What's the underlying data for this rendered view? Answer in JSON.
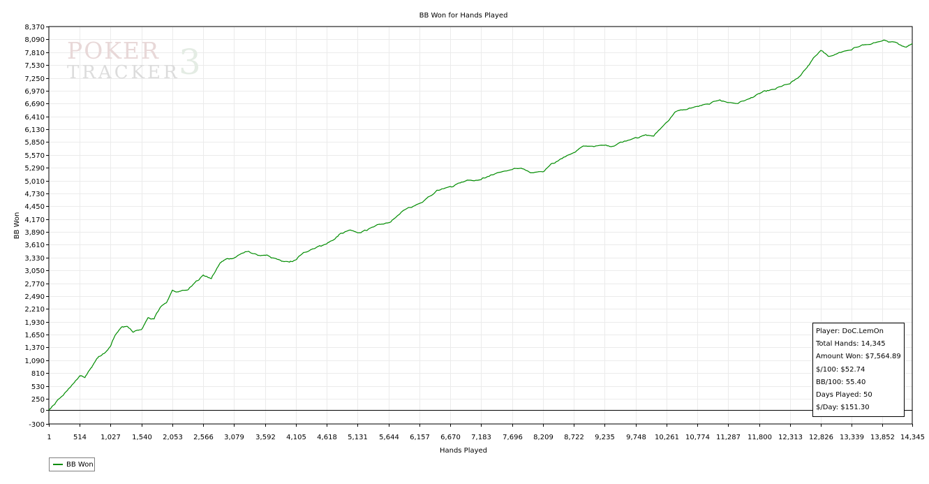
{
  "chart_data": {
    "type": "line",
    "title": "BB Won for Hands Played",
    "xlabel": "Hands Played",
    "ylabel": "BB Won",
    "xlim": [
      1,
      14345
    ],
    "ylim": [
      -300,
      8370
    ],
    "x_ticks": [
      "1",
      "514",
      "1,027",
      "1,540",
      "2,053",
      "2,566",
      "3,079",
      "3,592",
      "4,105",
      "4,618",
      "5,131",
      "5,644",
      "6,157",
      "6,670",
      "7,183",
      "7,696",
      "8,209",
      "8,722",
      "9,235",
      "9,748",
      "10,261",
      "10,774",
      "11,287",
      "11,800",
      "12,313",
      "12,826",
      "13,339",
      "13,852",
      "14,345"
    ],
    "y_ticks": [
      "-300",
      "0",
      "250",
      "530",
      "810",
      "1,090",
      "1,370",
      "1,650",
      "1,930",
      "2,210",
      "2,490",
      "2,770",
      "3,050",
      "3,330",
      "3,610",
      "3,890",
      "4,170",
      "4,450",
      "4,730",
      "5,010",
      "5,290",
      "5,570",
      "5,850",
      "6,130",
      "6,410",
      "6,690",
      "6,970",
      "7,250",
      "7,530",
      "7,810",
      "8,090",
      "8,370"
    ],
    "grid": true,
    "legend_position": "bottom-left",
    "series": [
      {
        "name": "BB Won",
        "color": "#008c00",
        "x": [
          1,
          100,
          200,
          300,
          400,
          514,
          600,
          700,
          800,
          900,
          1027,
          1100,
          1200,
          1300,
          1400,
          1540,
          1650,
          1750,
          1850,
          1950,
          2053,
          2150,
          2300,
          2450,
          2566,
          2700,
          2850,
          2950,
          3079,
          3200,
          3300,
          3450,
          3592,
          3700,
          3850,
          4000,
          4105,
          4200,
          4350,
          4500,
          4618,
          4750,
          4850,
          5000,
          5131,
          5250,
          5400,
          5550,
          5644,
          5800,
          5950,
          6157,
          6300,
          6450,
          6670,
          6800,
          6950,
          7183,
          7300,
          7450,
          7696,
          7850,
          8000,
          8209,
          8350,
          8500,
          8722,
          8850,
          9000,
          9235,
          9350,
          9500,
          9748,
          9900,
          10050,
          10261,
          10400,
          10600,
          10774,
          10950,
          11150,
          11287,
          11450,
          11650,
          11800,
          11900,
          12050,
          12150,
          12313,
          12450,
          12600,
          12700,
          12826,
          12950,
          13100,
          13339,
          13500,
          13650,
          13852,
          13950,
          14100,
          14250,
          14345
        ],
        "y": [
          0,
          130,
          280,
          420,
          570,
          750,
          710,
          920,
          1130,
          1230,
          1400,
          1630,
          1800,
          1830,
          1700,
          1760,
          2020,
          1990,
          2240,
          2340,
          2620,
          2580,
          2620,
          2820,
          2950,
          2870,
          3220,
          3300,
          3320,
          3420,
          3460,
          3400,
          3380,
          3320,
          3270,
          3230,
          3280,
          3400,
          3500,
          3590,
          3630,
          3730,
          3860,
          3930,
          3870,
          3930,
          4000,
          4060,
          4090,
          4250,
          4400,
          4510,
          4650,
          4800,
          4880,
          4950,
          5020,
          5030,
          5100,
          5180,
          5250,
          5280,
          5180,
          5200,
          5380,
          5480,
          5620,
          5740,
          5760,
          5780,
          5750,
          5850,
          5950,
          6000,
          5980,
          6280,
          6500,
          6560,
          6630,
          6680,
          6770,
          6710,
          6690,
          6800,
          6910,
          6970,
          7000,
          7060,
          7120,
          7250,
          7480,
          7680,
          7850,
          7720,
          7780,
          7860,
          7960,
          7980,
          8060,
          8030,
          8010,
          7920,
          8000
        ]
      }
    ]
  },
  "stats": {
    "player": "Player: DoC.LemOn",
    "total_hands": "Total Hands: 14,345",
    "amount_won": "Amount Won: $7,564.89",
    "per_100": "$/100: $52.74",
    "bb_100": "BB/100: 55.40",
    "days_played": "Days Played: 50",
    "per_day": "$/Day: $151.30"
  },
  "legend": {
    "label": "BB Won",
    "color": "#008c00"
  },
  "watermark": {
    "line1": "POKER",
    "line2": "TRACKER",
    "line3": "3"
  }
}
